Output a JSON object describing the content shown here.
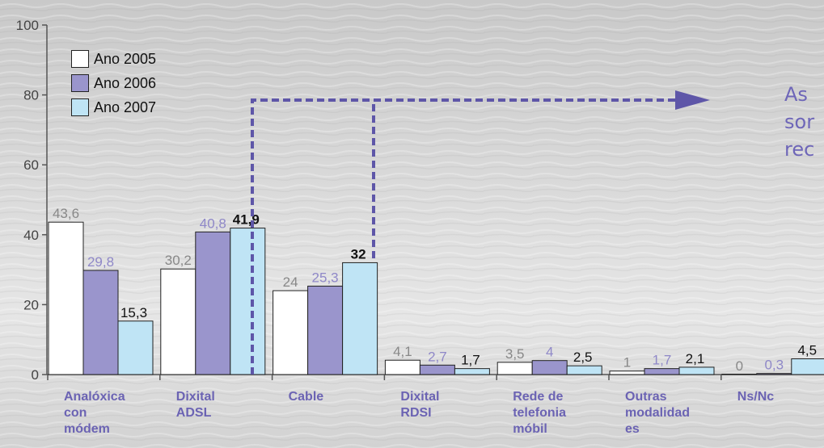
{
  "colors": {
    "ano2005": "#ffffff",
    "ano2006": "#9a95cc",
    "ano2007": "#bfe4f5",
    "accent": "#6b63b3",
    "label2005": "#888888",
    "label2006": "#8f88c8",
    "label2007": "#111111"
  },
  "legend": [
    {
      "label": "Ano 2005",
      "color": "#ffffff"
    },
    {
      "label": "Ano 2006",
      "color": "#9a95cc"
    },
    {
      "label": "Ano 2007",
      "color": "#bfe4f5"
    }
  ],
  "callout": {
    "lines": [
      "As",
      "sor",
      "rec"
    ]
  },
  "chart_data": {
    "type": "bar",
    "title": "",
    "xlabel": "",
    "ylabel": "",
    "ylim": [
      0,
      100
    ],
    "yticks": [
      "0",
      "20",
      "40",
      "60",
      "80",
      "100"
    ],
    "categories": [
      "Analóxica con módem",
      "Dixital ADSL",
      "Cable",
      "Dixital RDSI",
      "Rede de telefonia móbil",
      "Outras modalidad es",
      "Ns/Nc"
    ],
    "category_lines": [
      [
        "Analóxica",
        "con",
        "módem"
      ],
      [
        "Dixital",
        "ADSL"
      ],
      [
        "Cable"
      ],
      [
        "Dixital",
        "RDSI"
      ],
      [
        "Rede de",
        "telefonia",
        "móbil"
      ],
      [
        "Outras",
        "modalidad",
        "es"
      ],
      [
        "Ns/Nc"
      ]
    ],
    "series": [
      {
        "name": "Ano 2005",
        "values": [
          43.6,
          30.2,
          24,
          4.1,
          3.5,
          1,
          0
        ],
        "labels": [
          "43,6",
          "30,2",
          "24",
          "4,1",
          "3,5",
          "1",
          "0"
        ]
      },
      {
        "name": "Ano 2006",
        "values": [
          29.8,
          40.8,
          25.3,
          2.7,
          4,
          1.7,
          0.3
        ],
        "labels": [
          "29,8",
          "40,8",
          "25,3",
          "2,7",
          "4",
          "1,7",
          "0,3"
        ]
      },
      {
        "name": "Ano 2007",
        "values": [
          15.3,
          41.9,
          32,
          1.7,
          2.5,
          2.1,
          4.5
        ],
        "labels": [
          "15,3",
          "41,9",
          "32",
          "1,7",
          "2,5",
          "2,1",
          "4,5"
        ]
      }
    ],
    "grid": false,
    "legend_position": "top-left"
  }
}
